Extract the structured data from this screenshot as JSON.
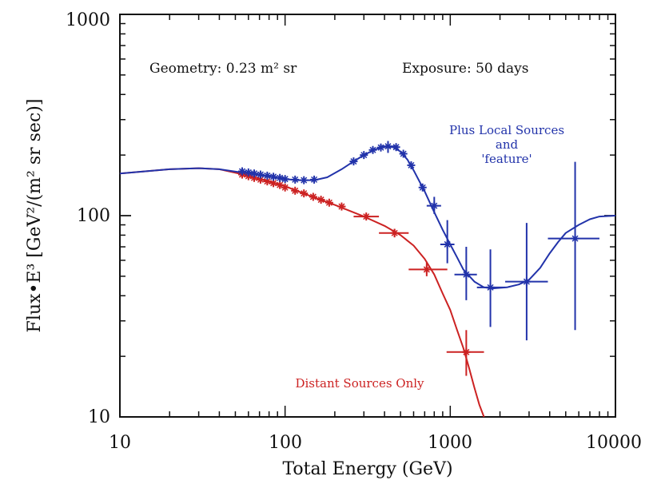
{
  "chart_data": {
    "type": "line",
    "title": "",
    "xlabel": "Total Energy (GeV)",
    "ylabel": "Flux•E³ [GeV²/(m² sr sec)]",
    "xscale": "log",
    "yscale": "log",
    "xlim": [
      10,
      10000
    ],
    "ylim": [
      10,
      1000
    ],
    "x_ticks": [
      "10",
      "100",
      "1000",
      "10000"
    ],
    "y_ticks": [
      "10",
      "100",
      "1000"
    ],
    "grid": false,
    "annotations": {
      "geometry": "Geometry: 0.23 m² sr",
      "exposure": "Exposure: 50 days"
    },
    "series": [
      {
        "name": "Distant Sources Only",
        "label_lines": [
          "Distant Sources Only"
        ],
        "color": "#cc2222",
        "curve": [
          [
            10,
            162
          ],
          [
            20,
            170
          ],
          [
            30,
            172
          ],
          [
            40,
            170
          ],
          [
            60,
            158
          ],
          [
            80,
            148
          ],
          [
            100,
            140
          ],
          [
            150,
            123
          ],
          [
            200,
            113
          ],
          [
            300,
            99
          ],
          [
            400,
            89
          ],
          [
            500,
            80
          ],
          [
            600,
            71
          ],
          [
            700,
            61
          ],
          [
            800,
            51
          ],
          [
            900,
            41
          ],
          [
            1000,
            34
          ],
          [
            1100,
            27
          ],
          [
            1200,
            22
          ],
          [
            1300,
            17.5
          ],
          [
            1400,
            14
          ],
          [
            1500,
            11.5
          ],
          [
            1600,
            10
          ]
        ],
        "points": [
          {
            "x": 55,
            "y": 160
          },
          {
            "x": 60,
            "y": 157
          },
          {
            "x": 65,
            "y": 154
          },
          {
            "x": 71,
            "y": 151
          },
          {
            "x": 78,
            "y": 148
          },
          {
            "x": 85,
            "y": 145
          },
          {
            "x": 93,
            "y": 142
          },
          {
            "x": 100,
            "y": 138
          },
          {
            "x": 115,
            "y": 133
          },
          {
            "x": 130,
            "y": 129
          },
          {
            "x": 148,
            "y": 124
          },
          {
            "x": 165,
            "y": 120
          },
          {
            "x": 185,
            "y": 116
          },
          {
            "x": 220,
            "y": 111
          },
          {
            "x": 310,
            "y": 99,
            "xerr": [
              260,
              370
            ],
            "yerr": [
              96,
              102
            ]
          },
          {
            "x": 460,
            "y": 82,
            "xerr": [
              370,
              560
            ],
            "yerr": [
              78,
              86
            ]
          },
          {
            "x": 720,
            "y": 54,
            "xerr": [
              560,
              960
            ],
            "yerr": [
              50,
              59
            ]
          },
          {
            "x": 1250,
            "y": 21,
            "xerr": [
              950,
              1600
            ],
            "yerr": [
              16,
              27
            ]
          }
        ]
      },
      {
        "name": "Plus Local Sources and 'feature'",
        "label_lines": [
          "Plus Local Sources",
          "and",
          "'feature'"
        ],
        "color": "#2233aa",
        "curve": [
          [
            10,
            162
          ],
          [
            20,
            170
          ],
          [
            30,
            172
          ],
          [
            40,
            170
          ],
          [
            60,
            162
          ],
          [
            80,
            156
          ],
          [
            100,
            152
          ],
          [
            120,
            150
          ],
          [
            150,
            150
          ],
          [
            180,
            155
          ],
          [
            220,
            170
          ],
          [
            260,
            186
          ],
          [
            300,
            200
          ],
          [
            350,
            213
          ],
          [
            400,
            220
          ],
          [
            450,
            219
          ],
          [
            500,
            208
          ],
          [
            550,
            190
          ],
          [
            600,
            168
          ],
          [
            700,
            132
          ],
          [
            800,
            104
          ],
          [
            900,
            85
          ],
          [
            1000,
            72
          ],
          [
            1100,
            62
          ],
          [
            1200,
            54
          ],
          [
            1400,
            47
          ],
          [
            1600,
            44
          ],
          [
            1800,
            43.5
          ],
          [
            2200,
            44
          ],
          [
            2600,
            45.5
          ],
          [
            3000,
            48
          ],
          [
            3500,
            55
          ],
          [
            4000,
            65
          ],
          [
            4500,
            74
          ],
          [
            5000,
            82
          ],
          [
            6000,
            90
          ],
          [
            7000,
            96
          ],
          [
            8000,
            99
          ],
          [
            10000,
            100
          ]
        ],
        "points": [
          {
            "x": 55,
            "y": 166
          },
          {
            "x": 60,
            "y": 164
          },
          {
            "x": 65,
            "y": 162
          },
          {
            "x": 71,
            "y": 160
          },
          {
            "x": 78,
            "y": 158
          },
          {
            "x": 85,
            "y": 156
          },
          {
            "x": 93,
            "y": 154
          },
          {
            "x": 100,
            "y": 152
          },
          {
            "x": 115,
            "y": 151
          },
          {
            "x": 130,
            "y": 150
          },
          {
            "x": 150,
            "y": 151
          },
          {
            "x": 260,
            "y": 186
          },
          {
            "x": 300,
            "y": 200
          },
          {
            "x": 340,
            "y": 212
          },
          {
            "x": 380,
            "y": 218
          },
          {
            "x": 420,
            "y": 221,
            "xerr": [
              380,
              470
            ],
            "yerr": [
              205,
              235
            ]
          },
          {
            "x": 470,
            "y": 219
          },
          {
            "x": 520,
            "y": 203
          },
          {
            "x": 580,
            "y": 178
          },
          {
            "x": 680,
            "y": 138
          },
          {
            "x": 800,
            "y": 112,
            "xerr": [
              720,
              880
            ],
            "yerr": [
              102,
              124
            ]
          },
          {
            "x": 960,
            "y": 72,
            "xerr": [
              870,
              1060
            ],
            "yerr": [
              58,
              95
            ]
          },
          {
            "x": 1250,
            "y": 51,
            "xerr": [
              1060,
              1450
            ],
            "yerr": [
              38,
              70
            ]
          },
          {
            "x": 1750,
            "y": 44,
            "xerr": [
              1450,
              2150
            ],
            "yerr": [
              28,
              68
            ]
          },
          {
            "x": 2900,
            "y": 47,
            "xerr": [
              2150,
              3900
            ],
            "yerr": [
              24,
              92
            ]
          },
          {
            "x": 5700,
            "y": 77,
            "xerr": [
              3900,
              8000
            ],
            "yerr": [
              27,
              185
            ]
          }
        ]
      }
    ]
  }
}
